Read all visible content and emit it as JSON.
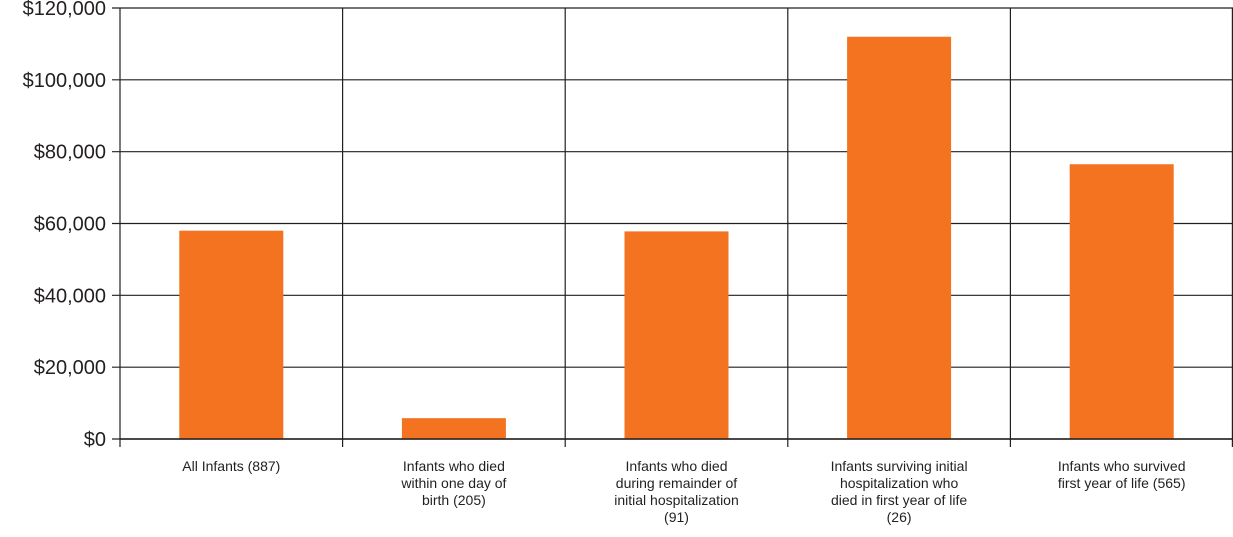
{
  "chart_data": {
    "type": "bar",
    "categories": [
      [
        "All Infants (887)"
      ],
      [
        "Infants who died",
        "within one day of",
        "birth (205)"
      ],
      [
        "Infants who died",
        "during remainder of",
        "initial hospitalization",
        "(91)"
      ],
      [
        "Infants surviving initial",
        "hospitalization who",
        "died in first year of life",
        "(26)"
      ],
      [
        "Infants who survived",
        "first year of life (565)"
      ]
    ],
    "values": [
      58000,
      5800,
      57800,
      112000,
      76500
    ],
    "ylim": [
      0,
      120000
    ],
    "yticks": [
      0,
      20000,
      40000,
      60000,
      80000,
      100000,
      120000
    ],
    "ytick_labels": [
      "$0",
      "$20,000",
      "$40,000",
      "$60,000",
      "$80,000",
      "$100,000",
      "$120,000"
    ],
    "grid": true,
    "colors": {
      "bar": "#f37321",
      "axis": "#231f20",
      "text": "#231f20"
    }
  }
}
